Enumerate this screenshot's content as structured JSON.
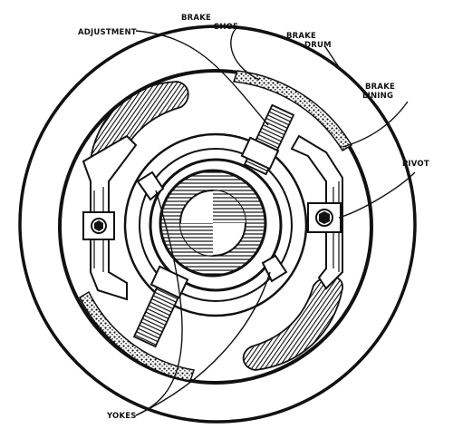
{
  "labels": {
    "adjustment": "ADJUSTMENT",
    "brake_shoe_1": "BRAKE",
    "brake_shoe_2": "SHOE",
    "brake_drum_1": "BRAKE",
    "brake_drum_2": "DRUM",
    "brake_lining_1": "BRAKE",
    "brake_lining_2": "LINING",
    "pivot": "PIVOT",
    "yokes": "YOKES"
  },
  "colors": {
    "ink": "#111111",
    "paper": "#ffffff"
  }
}
